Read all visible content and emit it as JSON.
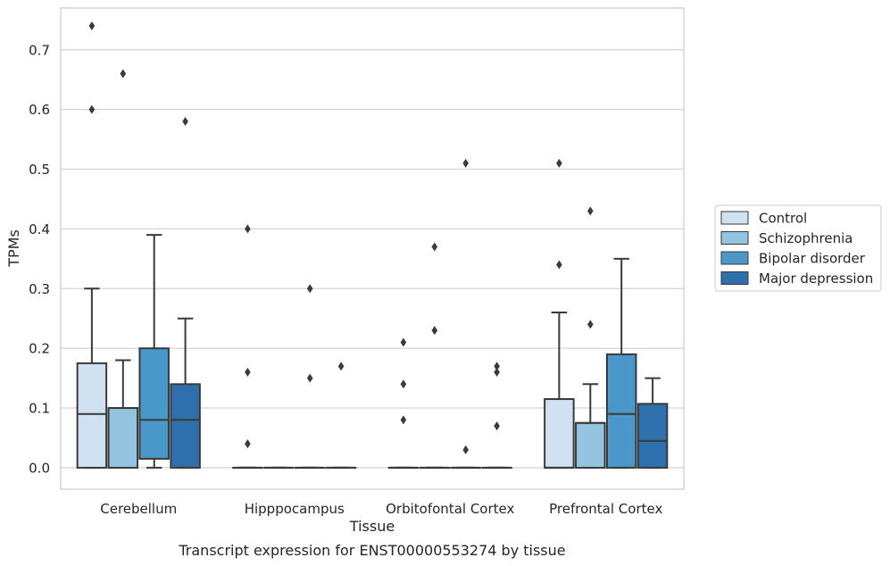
{
  "chart_data": {
    "type": "box",
    "title": "Transcript expression for ENST00000553274 by tissue",
    "xlabel": "Tissue",
    "ylabel": "TPMs",
    "ylim": [
      -0.036,
      0.77
    ],
    "yticks": [
      "0.0",
      "0.1",
      "0.2",
      "0.3",
      "0.4",
      "0.5",
      "0.6",
      "0.7"
    ],
    "grid": true,
    "legend_position": "center-right",
    "categories": [
      "Cerebellum",
      "Hipppocampus",
      "Orbitofontal Cortex",
      "Prefrontal Cortex"
    ],
    "colors": {
      "Control": "#d0e1f2",
      "Schizophrenia": "#94c4df",
      "Bipolar disorder": "#4a98c9",
      "Major depression": "#2e6fad",
      "edge": "#3a3a3a",
      "grid": "#d4d4d4"
    },
    "series": [
      {
        "name": "Control",
        "boxes": [
          {
            "whislo": 0.0,
            "q1": 0.0,
            "med": 0.09,
            "q3": 0.175,
            "whishi": 0.3,
            "fliers": [
              0.74,
              0.6
            ]
          },
          {
            "whislo": 0.0,
            "q1": 0.0,
            "med": 0.0,
            "q3": 0.0,
            "whishi": 0.0,
            "fliers": [
              0.4,
              0.16,
              0.04
            ]
          },
          {
            "whislo": 0.0,
            "q1": 0.0,
            "med": 0.0,
            "q3": 0.0,
            "whishi": 0.0,
            "fliers": [
              0.21,
              0.14,
              0.08
            ]
          },
          {
            "whislo": 0.0,
            "q1": 0.0,
            "med": 0.0,
            "q3": 0.115,
            "whishi": 0.26,
            "fliers": [
              0.51,
              0.34
            ]
          }
        ]
      },
      {
        "name": "Schizophrenia",
        "boxes": [
          {
            "whislo": 0.0,
            "q1": 0.0,
            "med": 0.1,
            "q3": 0.1,
            "whishi": 0.18,
            "fliers": [
              0.66
            ]
          },
          {
            "whislo": 0.0,
            "q1": 0.0,
            "med": 0.0,
            "q3": 0.0,
            "whishi": 0.0,
            "fliers": []
          },
          {
            "whislo": 0.0,
            "q1": 0.0,
            "med": 0.0,
            "q3": 0.0,
            "whishi": 0.0,
            "fliers": [
              0.37,
              0.23
            ]
          },
          {
            "whislo": 0.0,
            "q1": 0.0,
            "med": 0.075,
            "q3": 0.075,
            "whishi": 0.14,
            "fliers": [
              0.43,
              0.24
            ]
          }
        ]
      },
      {
        "name": "Bipolar disorder",
        "boxes": [
          {
            "whislo": 0.0,
            "q1": 0.015,
            "med": 0.08,
            "q3": 0.2,
            "whishi": 0.39,
            "fliers": []
          },
          {
            "whislo": 0.0,
            "q1": 0.0,
            "med": 0.0,
            "q3": 0.0,
            "whishi": 0.0,
            "fliers": [
              0.3,
              0.15
            ]
          },
          {
            "whislo": 0.0,
            "q1": 0.0,
            "med": 0.0,
            "q3": 0.0,
            "whishi": 0.0,
            "fliers": [
              0.51,
              0.03
            ]
          },
          {
            "whislo": 0.0,
            "q1": 0.0,
            "med": 0.09,
            "q3": 0.19,
            "whishi": 0.35,
            "fliers": []
          }
        ]
      },
      {
        "name": "Major depression",
        "boxes": [
          {
            "whislo": 0.0,
            "q1": 0.0,
            "med": 0.08,
            "q3": 0.14,
            "whishi": 0.25,
            "fliers": [
              0.58
            ]
          },
          {
            "whislo": 0.0,
            "q1": 0.0,
            "med": 0.0,
            "q3": 0.0,
            "whishi": 0.0,
            "fliers": [
              0.17
            ]
          },
          {
            "whislo": 0.0,
            "q1": 0.0,
            "med": 0.0,
            "q3": 0.0,
            "whishi": 0.0,
            "fliers": [
              0.17,
              0.16,
              0.07
            ]
          },
          {
            "whislo": 0.0,
            "q1": 0.0,
            "med": 0.045,
            "q3": 0.107,
            "whishi": 0.15,
            "fliers": []
          }
        ]
      }
    ]
  }
}
